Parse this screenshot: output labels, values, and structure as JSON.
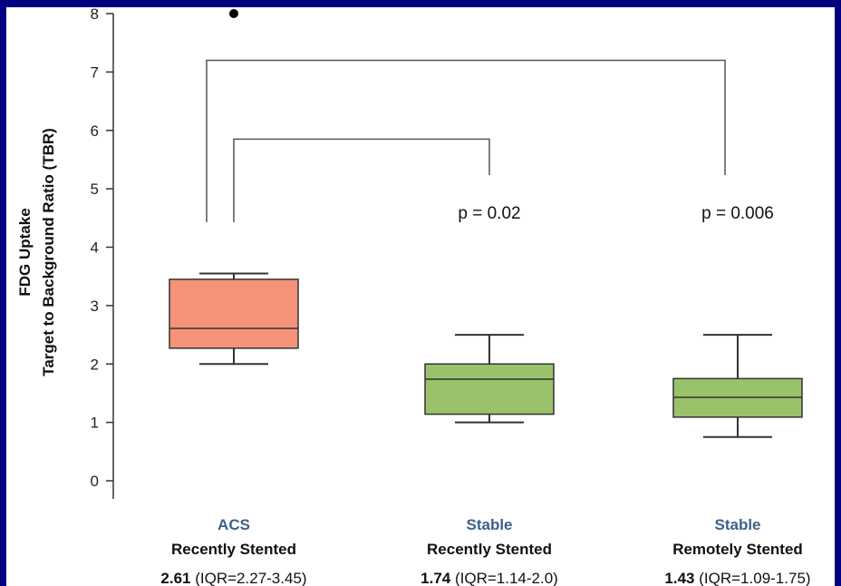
{
  "chart_data": {
    "type": "box",
    "ylabel_line1": "FDG Uptake",
    "ylabel_line2": "Target to Background Ratio (TBR)",
    "ylim": [
      0,
      8
    ],
    "yticks": [
      0,
      1,
      2,
      3,
      4,
      5,
      6,
      7,
      8
    ],
    "groups": [
      {
        "category": "ACS",
        "subcategory": "Recently Stented",
        "median_label": "2.61",
        "iqr_label": "(IQR=2.27-3.45)",
        "whisker_low": 2.0,
        "q1": 2.27,
        "median": 2.61,
        "q3": 3.45,
        "whisker_high": 3.55,
        "outliers": [
          8.0
        ],
        "color": "#f4937a"
      },
      {
        "category": "Stable",
        "subcategory": "Recently Stented",
        "median_label": "1.74",
        "iqr_label": "(IQR=1.14-2.0)",
        "whisker_low": 1.0,
        "q1": 1.14,
        "median": 1.74,
        "q3": 2.0,
        "whisker_high": 2.5,
        "outliers": [],
        "color": "#9ac26a"
      },
      {
        "category": "Stable",
        "subcategory": "Remotely Stented",
        "median_label": "1.43",
        "iqr_label": "(IQR=1.09-1.75)",
        "whisker_low": 0.75,
        "q1": 1.09,
        "median": 1.43,
        "q3": 1.75,
        "whisker_high": 2.5,
        "outliers": [],
        "color": "#9ac26a"
      }
    ],
    "comparisons": [
      {
        "from": 0,
        "to": 1,
        "p_label": "p = 0.02",
        "level": 5.85
      },
      {
        "from": 0,
        "to": 2,
        "p_label": "p = 0.006",
        "level": 7.2
      }
    ],
    "grid": false
  }
}
